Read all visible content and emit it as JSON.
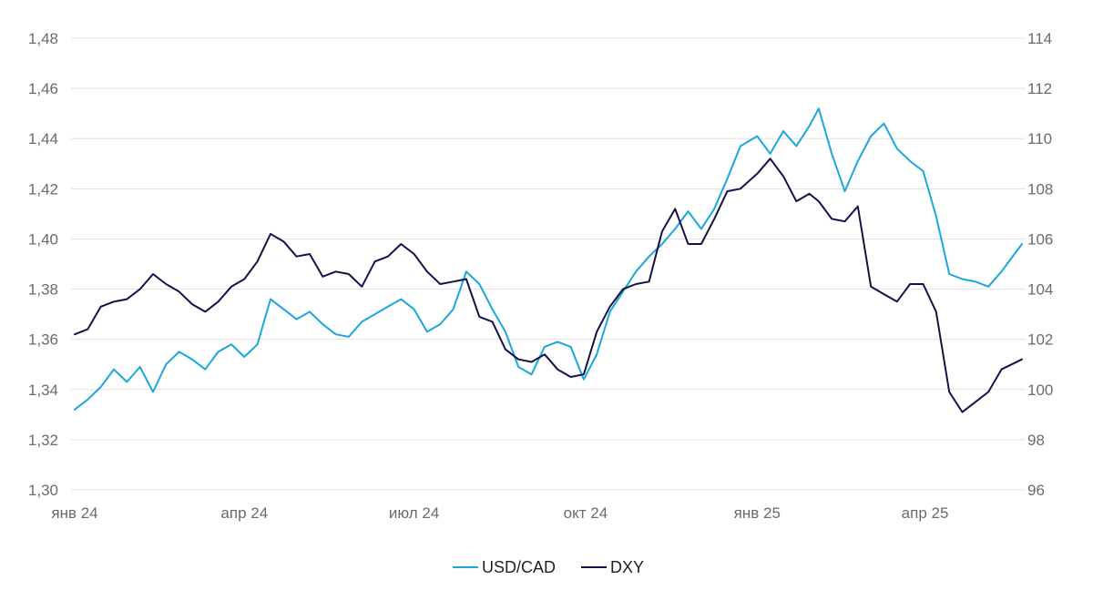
{
  "chart_data": {
    "type": "line",
    "title": "",
    "left_axis": {
      "ylim": [
        1.3,
        1.48
      ],
      "ticks": [
        "1,30",
        "1,32",
        "1,34",
        "1,36",
        "1,38",
        "1,40",
        "1,42",
        "1,44",
        "1,46",
        "1,48"
      ]
    },
    "right_axis": {
      "ylim": [
        96,
        114
      ],
      "ticks": [
        "96",
        "98",
        "100",
        "102",
        "104",
        "106",
        "108",
        "110",
        "112",
        "114"
      ]
    },
    "x_axis": {
      "range": [
        "2024-01-01",
        "2025-05-23"
      ],
      "tick_labels": [
        {
          "date": "2024-01-01",
          "label": "янв 24"
        },
        {
          "date": "2024-04-01",
          "label": "апр 24"
        },
        {
          "date": "2024-07-01",
          "label": "июл 24"
        },
        {
          "date": "2024-10-01",
          "label": "окт 24"
        },
        {
          "date": "2025-01-01",
          "label": "янв 25"
        },
        {
          "date": "2025-04-01",
          "label": "апр 25"
        }
      ]
    },
    "grid": true,
    "legend": "bottom-center",
    "series": [
      {
        "name": "USD/CAD",
        "axis": "left",
        "color": "#1ba7dc",
        "points": [
          [
            "2024-01-01",
            1.332
          ],
          [
            "2024-01-08",
            1.336
          ],
          [
            "2024-01-15",
            1.341
          ],
          [
            "2024-01-22",
            1.348
          ],
          [
            "2024-01-29",
            1.343
          ],
          [
            "2024-02-05",
            1.349
          ],
          [
            "2024-02-12",
            1.339
          ],
          [
            "2024-02-19",
            1.35
          ],
          [
            "2024-02-26",
            1.355
          ],
          [
            "2024-03-04",
            1.352
          ],
          [
            "2024-03-11",
            1.348
          ],
          [
            "2024-03-18",
            1.355
          ],
          [
            "2024-03-25",
            1.358
          ],
          [
            "2024-04-01",
            1.353
          ],
          [
            "2024-04-08",
            1.358
          ],
          [
            "2024-04-15",
            1.376
          ],
          [
            "2024-04-22",
            1.372
          ],
          [
            "2024-04-29",
            1.368
          ],
          [
            "2024-05-06",
            1.371
          ],
          [
            "2024-05-13",
            1.366
          ],
          [
            "2024-05-20",
            1.362
          ],
          [
            "2024-05-27",
            1.361
          ],
          [
            "2024-06-03",
            1.367
          ],
          [
            "2024-06-10",
            1.37
          ],
          [
            "2024-06-17",
            1.373
          ],
          [
            "2024-06-24",
            1.376
          ],
          [
            "2024-07-01",
            1.372
          ],
          [
            "2024-07-08",
            1.363
          ],
          [
            "2024-07-15",
            1.366
          ],
          [
            "2024-07-22",
            1.372
          ],
          [
            "2024-07-29",
            1.387
          ],
          [
            "2024-08-05",
            1.382
          ],
          [
            "2024-08-12",
            1.372
          ],
          [
            "2024-08-19",
            1.363
          ],
          [
            "2024-08-26",
            1.349
          ],
          [
            "2024-09-02",
            1.346
          ],
          [
            "2024-09-09",
            1.357
          ],
          [
            "2024-09-16",
            1.359
          ],
          [
            "2024-09-23",
            1.357
          ],
          [
            "2024-09-30",
            1.344
          ],
          [
            "2024-10-07",
            1.354
          ],
          [
            "2024-10-14",
            1.371
          ],
          [
            "2024-10-21",
            1.379
          ],
          [
            "2024-10-28",
            1.387
          ],
          [
            "2024-11-04",
            1.393
          ],
          [
            "2024-11-11",
            1.398
          ],
          [
            "2024-11-18",
            1.404
          ],
          [
            "2024-11-25",
            1.411
          ],
          [
            "2024-12-02",
            1.404
          ],
          [
            "2024-12-09",
            1.412
          ],
          [
            "2024-12-16",
            1.424
          ],
          [
            "2024-12-23",
            1.437
          ],
          [
            "2025-01-01",
            1.441
          ],
          [
            "2025-01-08",
            1.434
          ],
          [
            "2025-01-15",
            1.443
          ],
          [
            "2025-01-22",
            1.437
          ],
          [
            "2025-01-29",
            1.445
          ],
          [
            "2025-02-03",
            1.452
          ],
          [
            "2025-02-10",
            1.434
          ],
          [
            "2025-02-17",
            1.419
          ],
          [
            "2025-02-24",
            1.431
          ],
          [
            "2025-03-03",
            1.441
          ],
          [
            "2025-03-10",
            1.446
          ],
          [
            "2025-03-17",
            1.436
          ],
          [
            "2025-03-24",
            1.431
          ],
          [
            "2025-03-31",
            1.427
          ],
          [
            "2025-04-07",
            1.409
          ],
          [
            "2025-04-14",
            1.386
          ],
          [
            "2025-04-21",
            1.384
          ],
          [
            "2025-04-28",
            1.383
          ],
          [
            "2025-05-05",
            1.381
          ],
          [
            "2025-05-12",
            1.387
          ],
          [
            "2025-05-23",
            1.398
          ]
        ]
      },
      {
        "name": "DXY",
        "axis": "right",
        "color": "#14124a",
        "points": [
          [
            "2024-01-01",
            102.2
          ],
          [
            "2024-01-08",
            102.4
          ],
          [
            "2024-01-15",
            103.3
          ],
          [
            "2024-01-22",
            103.5
          ],
          [
            "2024-01-29",
            103.6
          ],
          [
            "2024-02-05",
            104.0
          ],
          [
            "2024-02-12",
            104.6
          ],
          [
            "2024-02-19",
            104.2
          ],
          [
            "2024-02-26",
            103.9
          ],
          [
            "2024-03-04",
            103.4
          ],
          [
            "2024-03-11",
            103.1
          ],
          [
            "2024-03-18",
            103.5
          ],
          [
            "2024-03-25",
            104.1
          ],
          [
            "2024-04-01",
            104.4
          ],
          [
            "2024-04-08",
            105.1
          ],
          [
            "2024-04-15",
            106.2
          ],
          [
            "2024-04-22",
            105.9
          ],
          [
            "2024-04-29",
            105.3
          ],
          [
            "2024-05-06",
            105.4
          ],
          [
            "2024-05-13",
            104.5
          ],
          [
            "2024-05-20",
            104.7
          ],
          [
            "2024-05-27",
            104.6
          ],
          [
            "2024-06-03",
            104.1
          ],
          [
            "2024-06-10",
            105.1
          ],
          [
            "2024-06-17",
            105.3
          ],
          [
            "2024-06-24",
            105.8
          ],
          [
            "2024-07-01",
            105.4
          ],
          [
            "2024-07-08",
            104.7
          ],
          [
            "2024-07-15",
            104.2
          ],
          [
            "2024-07-22",
            104.3
          ],
          [
            "2024-07-29",
            104.4
          ],
          [
            "2024-08-05",
            102.9
          ],
          [
            "2024-08-12",
            102.7
          ],
          [
            "2024-08-19",
            101.6
          ],
          [
            "2024-08-26",
            101.2
          ],
          [
            "2024-09-02",
            101.1
          ],
          [
            "2024-09-09",
            101.4
          ],
          [
            "2024-09-16",
            100.8
          ],
          [
            "2024-09-23",
            100.5
          ],
          [
            "2024-09-30",
            100.6
          ],
          [
            "2024-10-07",
            102.3
          ],
          [
            "2024-10-14",
            103.3
          ],
          [
            "2024-10-21",
            104.0
          ],
          [
            "2024-10-28",
            104.2
          ],
          [
            "2024-11-04",
            104.3
          ],
          [
            "2024-11-11",
            106.3
          ],
          [
            "2024-11-18",
            107.2
          ],
          [
            "2024-11-25",
            105.8
          ],
          [
            "2024-12-02",
            105.8
          ],
          [
            "2024-12-09",
            106.8
          ],
          [
            "2024-12-16",
            107.9
          ],
          [
            "2024-12-23",
            108.0
          ],
          [
            "2025-01-01",
            108.6
          ],
          [
            "2025-01-08",
            109.2
          ],
          [
            "2025-01-15",
            108.5
          ],
          [
            "2025-01-22",
            107.5
          ],
          [
            "2025-01-29",
            107.8
          ],
          [
            "2025-02-03",
            107.5
          ],
          [
            "2025-02-10",
            106.8
          ],
          [
            "2025-02-17",
            106.7
          ],
          [
            "2025-02-24",
            107.3
          ],
          [
            "2025-03-03",
            104.1
          ],
          [
            "2025-03-10",
            103.8
          ],
          [
            "2025-03-17",
            103.5
          ],
          [
            "2025-03-24",
            104.2
          ],
          [
            "2025-03-31",
            104.2
          ],
          [
            "2025-04-07",
            103.1
          ],
          [
            "2025-04-14",
            99.9
          ],
          [
            "2025-04-21",
            99.1
          ],
          [
            "2025-04-28",
            99.5
          ],
          [
            "2025-05-05",
            99.9
          ],
          [
            "2025-05-12",
            100.8
          ],
          [
            "2025-05-23",
            101.2
          ]
        ]
      }
    ]
  }
}
